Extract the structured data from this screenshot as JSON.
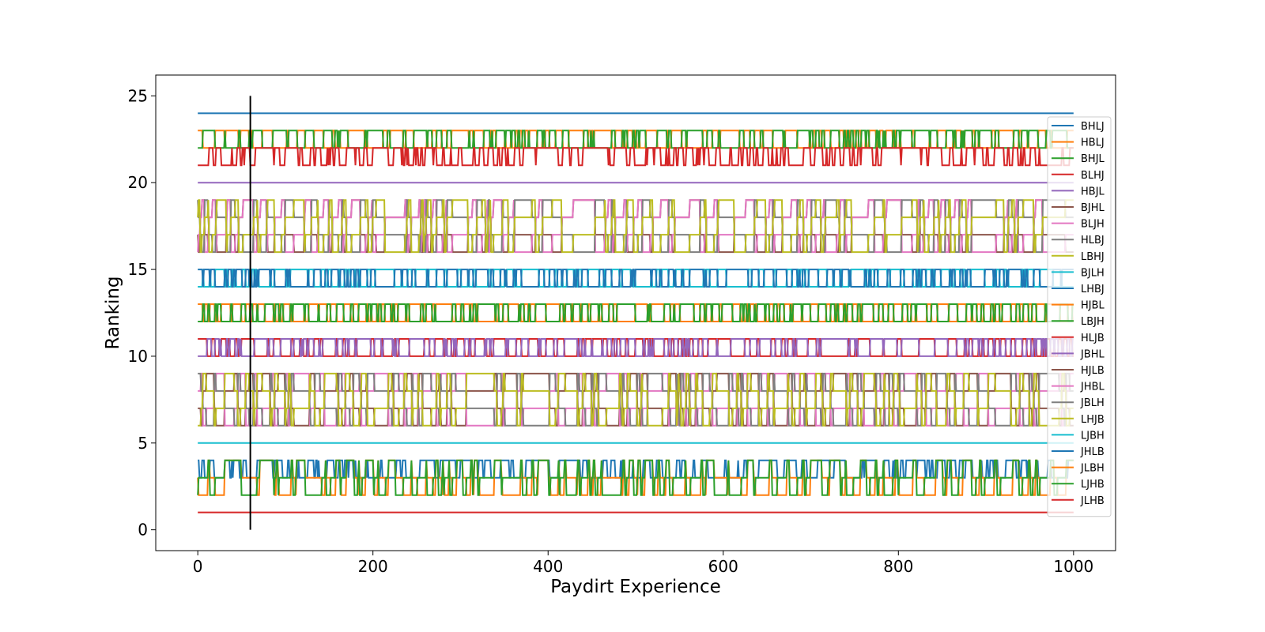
{
  "chart_data": {
    "type": "line",
    "title": "",
    "xlabel": "Paydirt Experience",
    "ylabel": "Ranking",
    "xlim": [
      -48,
      1048
    ],
    "ylim": [
      -1.2,
      26.2
    ],
    "x_ticks": [
      0,
      200,
      400,
      600,
      800,
      1000
    ],
    "y_ticks": [
      0,
      5,
      10,
      15,
      20,
      25
    ],
    "grid": false,
    "legend_position": "right",
    "n_points": 1001,
    "vertical_marker": {
      "x": 60,
      "y_range": [
        0,
        25
      ],
      "color": "#000000"
    },
    "series": [
      {
        "name": "BHLJ",
        "color": "#1f77b4",
        "levels": [
          24
        ],
        "pattern": "constant"
      },
      {
        "name": "HBLJ",
        "color": "#ff7f0e",
        "levels": [
          23,
          22
        ],
        "pattern": "toggle"
      },
      {
        "name": "BHJL",
        "color": "#2ca02c",
        "levels": [
          22,
          23
        ],
        "pattern": "toggle"
      },
      {
        "name": "BLHJ",
        "color": "#d62728",
        "levels": [
          21,
          22
        ],
        "pattern": "toggle"
      },
      {
        "name": "HBJL",
        "color": "#9467bd",
        "levels": [
          20
        ],
        "pattern": "constant"
      },
      {
        "name": "BJHL",
        "color": "#8c564b",
        "levels": [
          17,
          16,
          18,
          19
        ],
        "pattern": "cycle"
      },
      {
        "name": "BLJH",
        "color": "#e377c2",
        "levels": [
          16,
          17,
          18,
          19
        ],
        "pattern": "cycle"
      },
      {
        "name": "HLBJ",
        "color": "#7f7f7f",
        "levels": [
          19,
          18,
          17,
          16
        ],
        "pattern": "cycle"
      },
      {
        "name": "LBHJ",
        "color": "#bcbd22",
        "levels": [
          18,
          19,
          16,
          17
        ],
        "pattern": "cycle"
      },
      {
        "name": "BJLH",
        "color": "#17becf",
        "levels": [
          14,
          15
        ],
        "pattern": "toggle"
      },
      {
        "name": "LHBJ",
        "color": "#1f77b4",
        "levels": [
          15,
          14
        ],
        "pattern": "toggle"
      },
      {
        "name": "HJBL",
        "color": "#ff7f0e",
        "levels": [
          13,
          12
        ],
        "pattern": "toggle"
      },
      {
        "name": "LBJH",
        "color": "#2ca02c",
        "levels": [
          12,
          13
        ],
        "pattern": "toggle"
      },
      {
        "name": "HLJB",
        "color": "#d62728",
        "levels": [
          11,
          10
        ],
        "pattern": "toggle"
      },
      {
        "name": "JBHL",
        "color": "#9467bd",
        "levels": [
          10,
          11
        ],
        "pattern": "toggle"
      },
      {
        "name": "HJLB",
        "color": "#8c564b",
        "levels": [
          7,
          6,
          8,
          9
        ],
        "pattern": "cycle"
      },
      {
        "name": "JHBL",
        "color": "#e377c2",
        "levels": [
          8,
          9,
          6,
          7
        ],
        "pattern": "cycle"
      },
      {
        "name": "JBLH",
        "color": "#7f7f7f",
        "levels": [
          9,
          8,
          7,
          6
        ],
        "pattern": "cycle"
      },
      {
        "name": "LHJB",
        "color": "#bcbd22",
        "levels": [
          6,
          7,
          9,
          8
        ],
        "pattern": "cycle"
      },
      {
        "name": "LJBH",
        "color": "#17becf",
        "levels": [
          5
        ],
        "pattern": "constant"
      },
      {
        "name": "JHLB",
        "color": "#1f77b4",
        "levels": [
          4,
          3
        ],
        "pattern": "toggle"
      },
      {
        "name": "JLBH",
        "color": "#ff7f0e",
        "levels": [
          3,
          2,
          4
        ],
        "pattern": "cycle"
      },
      {
        "name": "LJHB",
        "color": "#2ca02c",
        "levels": [
          2,
          3,
          4
        ],
        "pattern": "cycle"
      },
      {
        "name": "JLHB",
        "color": "#d62728",
        "levels": [
          1
        ],
        "pattern": "constant"
      }
    ]
  }
}
